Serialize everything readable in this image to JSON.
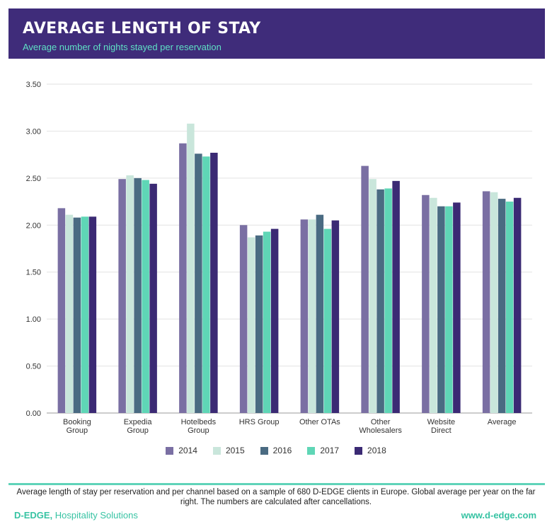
{
  "header": {
    "title": "AVERAGE LENGTH OF STAY",
    "subtitle": "Average number of nights stayed per reservation"
  },
  "chart_data": {
    "type": "bar",
    "categories": [
      [
        "Booking",
        "Group"
      ],
      [
        "Expedia",
        "Group"
      ],
      [
        "Hotelbeds",
        "Group"
      ],
      [
        "HRS Group"
      ],
      [
        "Other OTAs"
      ],
      [
        "Other",
        "Wholesalers"
      ],
      [
        "Website",
        "Direct"
      ],
      [
        "Average"
      ]
    ],
    "series": [
      {
        "name": "2014",
        "color": "#7a6fa3",
        "values": [
          2.18,
          2.49,
          2.87,
          2.0,
          2.06,
          2.63,
          2.32,
          2.36
        ]
      },
      {
        "name": "2015",
        "color": "#c9e6db",
        "values": [
          2.11,
          2.53,
          3.08,
          1.87,
          2.06,
          2.49,
          2.29,
          2.35
        ]
      },
      {
        "name": "2016",
        "color": "#4a6b82",
        "values": [
          2.08,
          2.5,
          2.76,
          1.89,
          2.11,
          2.38,
          2.2,
          2.28
        ]
      },
      {
        "name": "2017",
        "color": "#5fd6b6",
        "values": [
          2.09,
          2.48,
          2.73,
          1.93,
          1.96,
          2.39,
          2.2,
          2.25
        ]
      },
      {
        "name": "2018",
        "color": "#3b2a74",
        "values": [
          2.09,
          2.44,
          2.77,
          1.96,
          2.05,
          2.47,
          2.24,
          2.29
        ]
      }
    ],
    "yticks": [
      "0.00",
      "0.50",
      "1.00",
      "1.50",
      "2.00",
      "2.50",
      "3.00",
      "3.50"
    ],
    "ylim": [
      0,
      3.5
    ],
    "grid": true,
    "legend_position": "bottom"
  },
  "footer": {
    "caption": "Average length of stay per reservation and per channel based on a sample of 680 D-EDGE clients in Europe. Global average per year on the far right. The numbers are calculated after cancellations.",
    "brand_name": "D-EDGE,",
    "brand_tagline": " Hospitality Solutions",
    "website": "www.d-edge.com"
  }
}
